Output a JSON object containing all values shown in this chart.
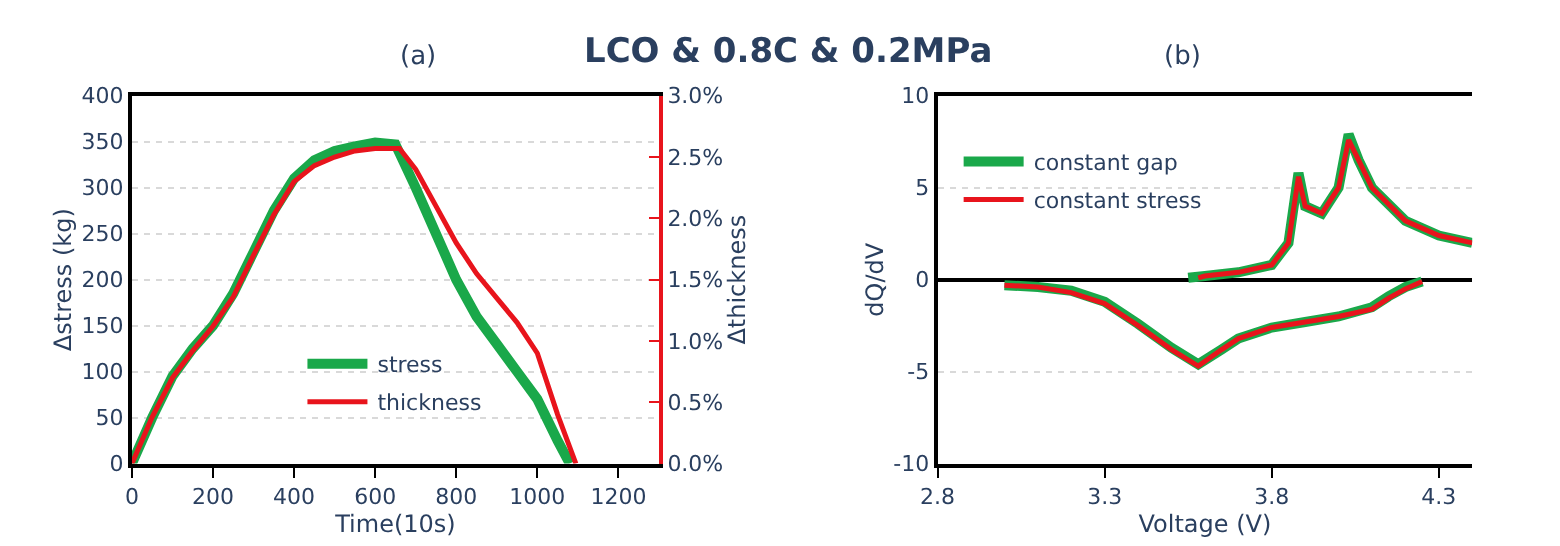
{
  "chart_data": [
    {
      "type": "line",
      "title": "(a)",
      "annotations": [
        "LCO & 0.8C & 0.2MPa"
      ],
      "xlabel": "Time(10s)",
      "ylabel": "Δstress (kg)",
      "y2label": "Δthickness",
      "xlim": [
        0,
        1300
      ],
      "xticks": [
        0,
        200,
        400,
        600,
        800,
        1000,
        1200
      ],
      "ylim": [
        0,
        400
      ],
      "yticks": [
        0,
        50,
        100,
        150,
        200,
        250,
        300,
        350,
        400
      ],
      "y2lim": [
        0,
        3
      ],
      "y2ticks": [
        {
          "value": 0,
          "label": "0.0%"
        },
        {
          "value": 0.5,
          "label": "0.5%"
        },
        {
          "value": 1,
          "label": "1.0%"
        },
        {
          "value": 1.5,
          "label": "1.5%"
        },
        {
          "value": 2,
          "label": "2.0%"
        },
        {
          "value": 2.5,
          "label": "2.5%"
        },
        {
          "value": 3,
          "label": "3.0%"
        }
      ],
      "grid": "y",
      "legend": "bottom",
      "line_style": "solid",
      "marker": "none",
      "series": [
        {
          "name": "stress",
          "color": "#1aa84a",
          "x": [
            0,
            50,
            100,
            150,
            200,
            250,
            300,
            350,
            400,
            450,
            500,
            550,
            600,
            650,
            700,
            750,
            800,
            850,
            900,
            950,
            1000,
            1050,
            1080
          ],
          "values": [
            0,
            50,
            95,
            125,
            150,
            185,
            230,
            275,
            310,
            330,
            340,
            345,
            349,
            347,
            300,
            250,
            200,
            160,
            130,
            100,
            70,
            25,
            0
          ]
        },
        {
          "name": "thickness",
          "color": "#e8141c",
          "axis": "y2",
          "x": [
            0,
            50,
            100,
            150,
            200,
            250,
            300,
            350,
            400,
            450,
            500,
            550,
            600,
            660,
            700,
            750,
            800,
            850,
            900,
            950,
            1000,
            1050,
            1095
          ],
          "values": [
            0,
            0.38,
            0.7,
            0.92,
            1.12,
            1.36,
            1.7,
            2.03,
            2.3,
            2.43,
            2.5,
            2.55,
            2.57,
            2.57,
            2.4,
            2.1,
            1.8,
            1.55,
            1.35,
            1.15,
            0.9,
            0.4,
            0
          ]
        }
      ]
    },
    {
      "type": "line",
      "title": "(b)",
      "xlabel": "Voltage (V)",
      "ylabel": "dQ/dV",
      "xlim": [
        2.8,
        4.4
      ],
      "xticks": [
        2.8,
        3.3,
        3.8,
        4.3
      ],
      "ylim": [
        -10,
        10
      ],
      "yticks": [
        -10,
        -5,
        0,
        5,
        10
      ],
      "grid": "y",
      "legend": "top left",
      "line_style": "solid",
      "marker": "none",
      "series": [
        {
          "name": "constant gap",
          "color": "#1aa84a",
          "x": [
            3.55,
            3.6,
            3.7,
            3.8,
            3.85,
            3.88,
            3.9,
            3.95,
            4.0,
            4.03,
            4.06,
            4.1,
            4.2,
            4.3,
            4.4,
            null,
            3.0,
            3.1,
            3.2,
            3.3,
            3.4,
            3.5,
            3.58,
            3.65,
            3.7,
            3.8,
            3.9,
            4.0,
            4.1,
            4.15,
            4.2,
            4.25
          ],
          "values": [
            0.1,
            0.2,
            0.4,
            0.8,
            2,
            5.8,
            4,
            3.6,
            5,
            7.9,
            6.5,
            5,
            3.2,
            2.4,
            2,
            null,
            -0.3,
            -0.4,
            -0.6,
            -1.2,
            -2.4,
            -3.7,
            -4.6,
            -3.8,
            -3.2,
            -2.6,
            -2.3,
            -2.0,
            -1.5,
            -0.9,
            -0.4,
            -0.1
          ]
        },
        {
          "name": "constant stress",
          "color": "#e8141c",
          "x": [
            3.58,
            3.6,
            3.7,
            3.8,
            3.85,
            3.88,
            3.9,
            3.95,
            4.0,
            4.03,
            4.06,
            4.1,
            4.2,
            4.3,
            4.4,
            null,
            3.0,
            3.1,
            3.2,
            3.3,
            3.4,
            3.5,
            3.58,
            3.65,
            3.7,
            3.8,
            3.9,
            4.0,
            4.1,
            4.15,
            4.2,
            4.25
          ],
          "values": [
            0.1,
            0.2,
            0.4,
            0.8,
            2,
            5.6,
            4,
            3.6,
            5,
            7.6,
            6.5,
            5,
            3.2,
            2.4,
            2,
            null,
            -0.3,
            -0.4,
            -0.7,
            -1.3,
            -2.5,
            -3.8,
            -4.7,
            -3.8,
            -3.2,
            -2.6,
            -2.3,
            -2.0,
            -1.6,
            -1.0,
            -0.5,
            -0.1
          ]
        }
      ]
    }
  ]
}
